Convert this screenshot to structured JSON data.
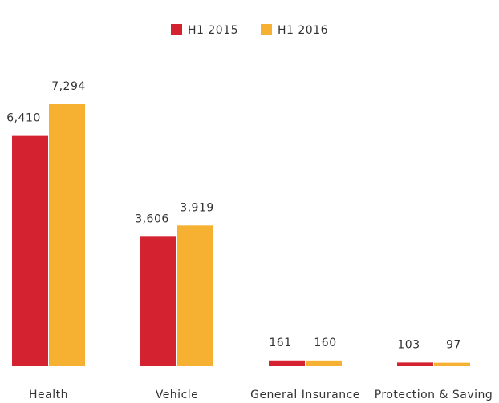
{
  "chart_data": {
    "type": "bar",
    "categories": [
      "Health",
      "Vehicle",
      "General Insurance",
      "Protection & Saving"
    ],
    "series": [
      {
        "name": "H1 2015",
        "color": "#d42231",
        "values": [
          6410,
          3606,
          161,
          103
        ],
        "value_labels": [
          "6,410",
          "3,606",
          "161",
          "103"
        ]
      },
      {
        "name": "H1 2016",
        "color": "#f6b132",
        "values": [
          7294,
          3919,
          160,
          97
        ],
        "value_labels": [
          "7,294",
          "3,919",
          "160",
          "97"
        ]
      }
    ],
    "legend": "top"
  }
}
